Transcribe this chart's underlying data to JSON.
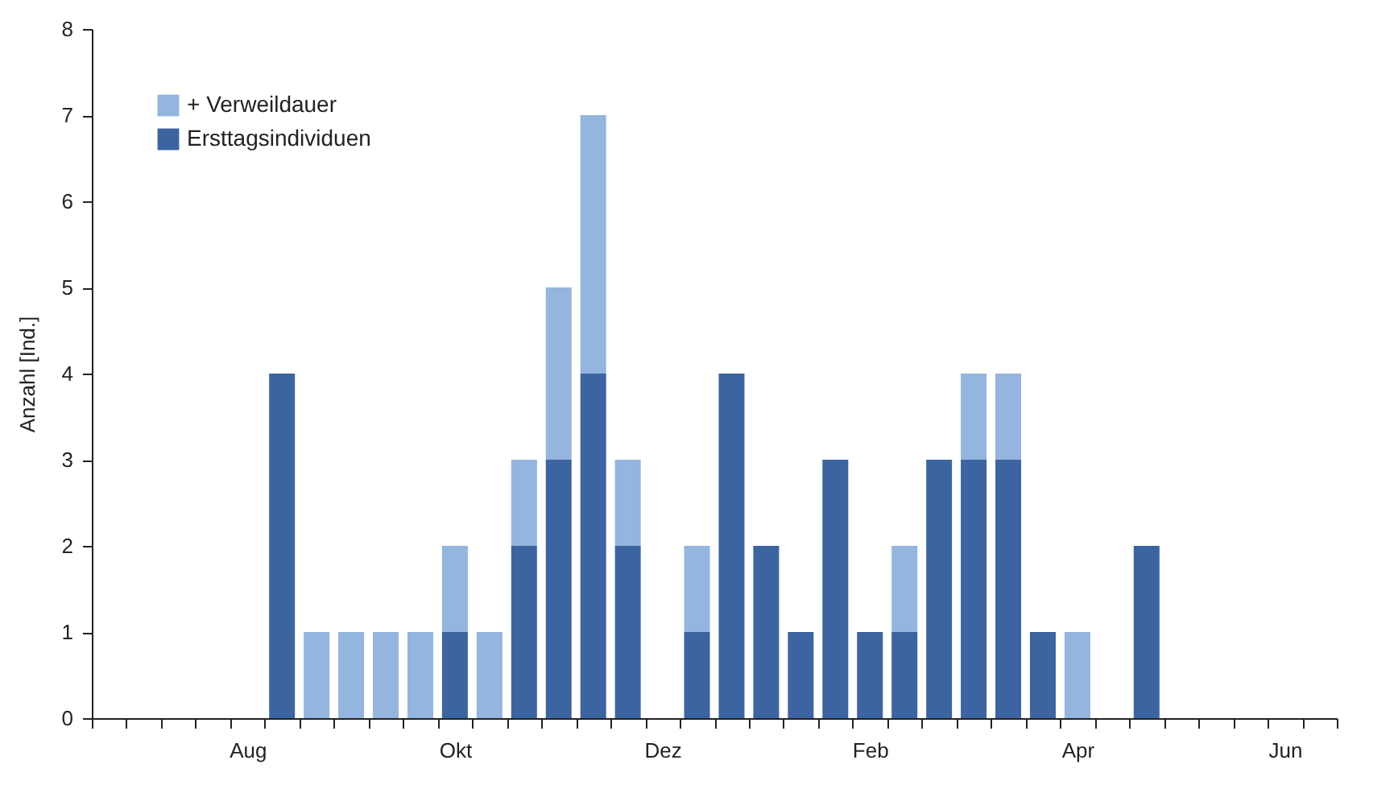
{
  "chart_data": {
    "type": "bar",
    "stacked": true,
    "ylabel": "Anzahl [Ind.]",
    "ylim": [
      0,
      8
    ],
    "yticks": [
      0,
      1,
      2,
      3,
      4,
      5,
      6,
      7,
      8
    ],
    "grid": false,
    "legend": "top left",
    "categories": [
      null,
      null,
      null,
      null,
      "Aug",
      null,
      null,
      null,
      null,
      null,
      "Okt",
      null,
      null,
      null,
      null,
      null,
      "Dez",
      null,
      null,
      null,
      null,
      null,
      "Feb",
      null,
      null,
      null,
      null,
      null,
      "Apr",
      null,
      null,
      null,
      null,
      null,
      "Jun",
      null
    ],
    "series": [
      {
        "name": "Ersttagsindividuen",
        "color": "#3b64a0",
        "values": [
          null,
          null,
          null,
          null,
          null,
          4,
          null,
          null,
          null,
          null,
          1,
          null,
          2,
          3,
          4,
          2,
          null,
          1,
          4,
          2,
          1,
          3,
          1,
          1,
          3,
          3,
          3,
          1,
          null,
          null,
          2,
          null,
          null,
          null,
          null,
          null
        ]
      },
      {
        "name": "+ Verweildauer",
        "color": "#93b5de",
        "values": [
          null,
          null,
          null,
          null,
          null,
          null,
          1,
          1,
          1,
          1,
          1,
          1,
          1,
          2,
          3,
          1,
          null,
          1,
          null,
          null,
          null,
          null,
          null,
          1,
          null,
          1,
          1,
          null,
          1,
          null,
          null,
          null,
          null,
          null,
          null,
          null
        ]
      }
    ]
  }
}
